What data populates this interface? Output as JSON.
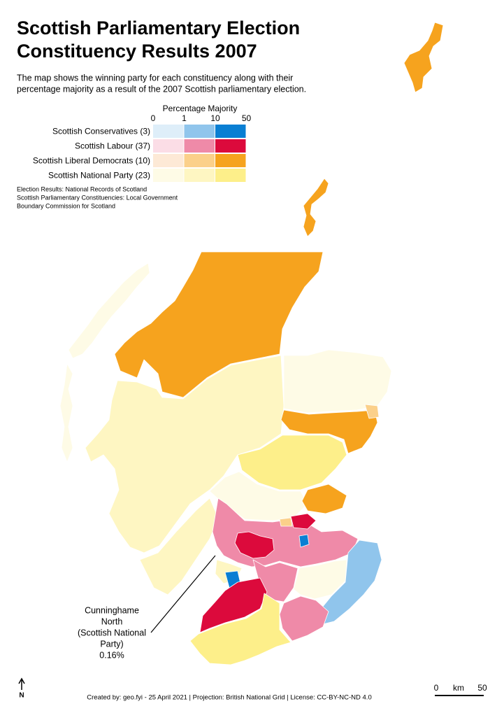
{
  "title_lines": [
    "Scottish Parliamentary Election",
    "Constituency Results 2007"
  ],
  "description_lines": [
    "The map shows the winning party for each constituency along with their",
    "percentage majority as a result of the 2007 Scottish parliamentary election."
  ],
  "legend": {
    "title": "Percentage Majority",
    "ticks": [
      0,
      1,
      10,
      50
    ],
    "parties": [
      {
        "label": "Scottish Conservatives (3)",
        "colors": [
          "#deeef9",
          "#90c5ec",
          "#0a7fd3"
        ]
      },
      {
        "label": "Scottish Labour (37)",
        "colors": [
          "#fbdde6",
          "#ef8aa8",
          "#dc0a3c"
        ]
      },
      {
        "label": "Scottish Liberal Democrats (10)",
        "colors": [
          "#fde9d6",
          "#fbd08a",
          "#f6a31e"
        ]
      },
      {
        "label": "Scottish National Party (23)",
        "colors": [
          "#fefbe6",
          "#fef6c2",
          "#fdef8a"
        ]
      }
    ]
  },
  "sources": [
    "Election Results: National Records of Scotland",
    "Scottish Parliamentary Constituencies: Local Government",
    "Boundary Commission for Scotland"
  ],
  "annotation": [
    "Cunninghame",
    "North",
    "(Scottish National",
    "Party)",
    "0.16%"
  ],
  "scale_bar": {
    "start": 0,
    "unit": "km",
    "end": 50
  },
  "north": "N",
  "footer": "Created by: geo.fyi - 25 April 2021 | Projection: British National Grid | License: CC-BY-NC-ND 4.0"
}
